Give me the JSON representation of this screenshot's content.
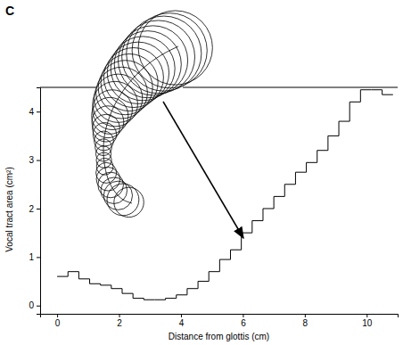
{
  "chart_data": {
    "type": "step",
    "panel_label": "C",
    "x_label": "Distance from glottis (cm)",
    "y_label": "Vocal tract area (cm²)",
    "bins": [
      0,
      0.35,
      0.7,
      1.05,
      1.4,
      1.75,
      2.1,
      2.45,
      2.8,
      3.15,
      3.5,
      3.85,
      4.2,
      4.55,
      4.9,
      5.25,
      5.6,
      5.95,
      6.3,
      6.65,
      7.0,
      7.35,
      7.7,
      8.05,
      8.4,
      8.75,
      9.1,
      9.45,
      9.8,
      10.15,
      10.5,
      10.85
    ],
    "values": [
      0.6,
      0.7,
      0.55,
      0.45,
      0.42,
      0.35,
      0.25,
      0.15,
      0.12,
      0.12,
      0.15,
      0.22,
      0.35,
      0.5,
      0.7,
      0.95,
      1.15,
      1.5,
      1.75,
      2.0,
      2.25,
      2.5,
      2.75,
      2.95,
      3.2,
      3.5,
      3.8,
      4.2,
      4.45,
      4.45,
      4.35
    ],
    "color": "#000000",
    "xlim": [
      -0.55,
      11.0
    ],
    "ylim": [
      -0.17,
      4.5
    ],
    "xticks": [
      0,
      2,
      4,
      6,
      8,
      10
    ],
    "yticks": [
      0,
      1,
      2,
      3,
      4
    ],
    "grid": false
  }
}
